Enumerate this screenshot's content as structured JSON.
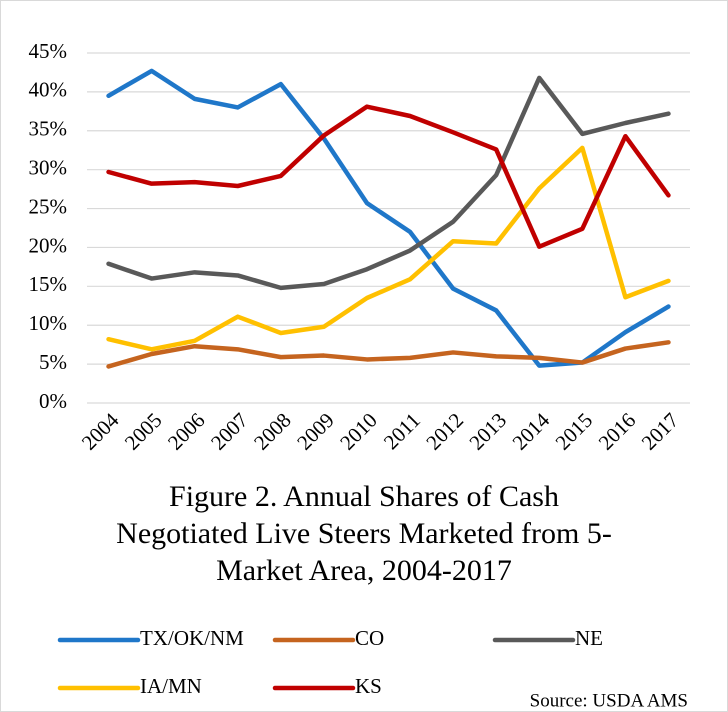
{
  "chart_data": {
    "type": "line",
    "title": "Figure 2. Annual Shares of Cash Negotiated Live Steers Marketed from 5-Market Area, 2004-2017",
    "categories": [
      "2004",
      "2005",
      "2006",
      "2007",
      "2008",
      "2009",
      "2010",
      "2011",
      "2012",
      "2013",
      "2014",
      "2015",
      "2016",
      "2017"
    ],
    "series": [
      {
        "name": "TX/OK/NM",
        "color": "#1f77c9",
        "values": [
          39.5,
          42.7,
          39.1,
          38,
          41,
          34,
          25.7,
          22,
          14.7,
          11.9,
          4.8,
          5.2,
          9.1,
          12.4
        ]
      },
      {
        "name": "CO",
        "color": "#c5641f",
        "values": [
          4.7,
          6.3,
          7.3,
          6.9,
          5.9,
          6.1,
          5.6,
          5.8,
          6.5,
          6,
          5.8,
          5.2,
          7,
          7.8
        ]
      },
      {
        "name": "NE",
        "color": "#595959",
        "values": [
          17.9,
          16,
          16.8,
          16.4,
          14.8,
          15.3,
          17.2,
          19.6,
          23.3,
          29.3,
          41.8,
          34.6,
          36,
          37.2
        ]
      },
      {
        "name": "IA/MN",
        "color": "#ffc000",
        "values": [
          8.2,
          6.9,
          8,
          11.1,
          9,
          9.8,
          13.5,
          15.9,
          20.8,
          20.5,
          27.6,
          32.8,
          13.6,
          15.7
        ]
      },
      {
        "name": "KS",
        "color": "#c00000",
        "values": [
          29.7,
          28.2,
          28.4,
          27.9,
          29.2,
          34.4,
          38.1,
          36.9,
          34.8,
          32.6,
          20.1,
          22.4,
          34.3,
          26.7
        ]
      }
    ],
    "ylim": [
      0,
      45
    ],
    "yticks": [
      {
        "value": 0,
        "label": "0%"
      },
      {
        "value": 5,
        "label": "5%"
      },
      {
        "value": 10,
        "label": "10%"
      },
      {
        "value": 15,
        "label": "15%"
      },
      {
        "value": 20,
        "label": "20%"
      },
      {
        "value": 25,
        "label": "25%"
      },
      {
        "value": 30,
        "label": "30%"
      },
      {
        "value": 35,
        "label": "35%"
      },
      {
        "value": 40,
        "label": "40%"
      },
      {
        "value": 45,
        "label": "45%"
      }
    ],
    "grid": true,
    "legend": "bottom",
    "source": "Source: USDA AMS"
  }
}
